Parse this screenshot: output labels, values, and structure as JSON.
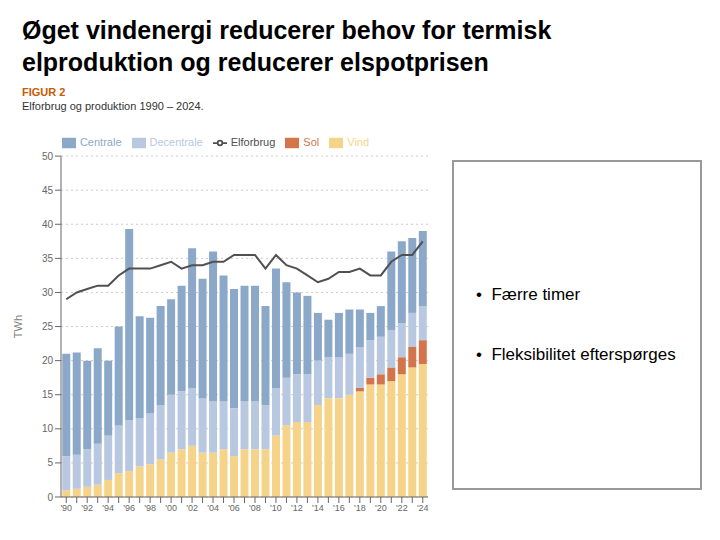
{
  "chart_data": {
    "type": "bar",
    "title": [
      "Øget vindenergi reducerer behov for termisk",
      "elproduktion og reducerer elspotprisen"
    ],
    "subtitle": "Elforbrug og produktion 1990 – 2024.",
    "annotations": [
      {
        "text": "FIGUR 2",
        "color": "#C85A00"
      },
      {
        "text": "•  Færre timer"
      },
      {
        "text": "•  Fleksibilitet efterspørges"
      }
    ],
    "ylabel": "TWh",
    "categories": [
      "'90",
      null,
      "'92",
      null,
      "'94",
      null,
      "'96",
      null,
      "'98",
      null,
      "'00",
      null,
      "'02",
      null,
      "'04",
      null,
      "'06",
      null,
      "'08",
      null,
      "'10",
      null,
      "'12",
      null,
      "'14",
      null,
      "'16",
      null,
      "'18",
      null,
      "'20",
      null,
      "'22",
      null,
      "'24"
    ],
    "series": [
      {
        "name": "Vind",
        "color": "#F5D48A",
        "values": [
          1.0,
          1.2,
          1.5,
          1.8,
          2.5,
          3.5,
          3.8,
          4.5,
          4.8,
          5.5,
          6.5,
          7.0,
          7.5,
          6.5,
          6.5,
          7.0,
          6.0,
          7.0,
          7.0,
          7.0,
          9.0,
          10.5,
          11.0,
          11.0,
          13.5,
          14.5,
          14.5,
          15.0,
          15.5,
          16.5,
          16.5,
          17.0,
          18.0,
          19.0,
          19.5
        ]
      },
      {
        "name": "Sol",
        "color": "#D4744A",
        "values": [
          0.0,
          0.0,
          0.0,
          0.0,
          0.0,
          0.0,
          0.0,
          0.0,
          0.0,
          0.0,
          0.0,
          0.0,
          0.0,
          0.0,
          0.0,
          0.0,
          0.0,
          0.0,
          0.0,
          0.0,
          0.0,
          0.0,
          0.0,
          0.0,
          0.0,
          0.0,
          0.0,
          0.0,
          0.5,
          1.0,
          1.5,
          2.0,
          2.5,
          3.0,
          3.5
        ]
      },
      {
        "name": "Decentrale",
        "color": "#B8C8E0",
        "values": [
          5.0,
          5.0,
          5.5,
          6.0,
          6.5,
          7.0,
          7.5,
          7.0,
          7.5,
          8.0,
          8.5,
          8.5,
          8.5,
          8.0,
          7.5,
          7.0,
          7.0,
          7.0,
          7.0,
          6.5,
          7.0,
          7.0,
          7.0,
          7.0,
          6.5,
          6.0,
          6.0,
          6.0,
          6.0,
          5.5,
          5.5,
          5.5,
          5.0,
          5.0,
          5.0
        ]
      },
      {
        "name": "Centrale",
        "color": "#8CA8C8",
        "values": [
          15.0,
          15.0,
          13.0,
          14.0,
          11.0,
          14.5,
          28.0,
          15.0,
          14.0,
          14.5,
          14.0,
          15.5,
          20.5,
          17.5,
          22.0,
          18.5,
          17.5,
          17.0,
          17.0,
          14.5,
          17.5,
          14.0,
          12.0,
          11.5,
          7.0,
          5.5,
          6.5,
          6.5,
          5.5,
          4.0,
          4.5,
          11.5,
          12.0,
          11.0,
          11.0
        ]
      },
      {
        "name": "Elforbrug",
        "type": "line",
        "color": "#505050",
        "values": [
          29.0,
          30.0,
          30.5,
          31.0,
          31.0,
          32.5,
          33.5,
          33.5,
          33.5,
          34.0,
          34.5,
          33.5,
          34.0,
          34.0,
          34.5,
          34.5,
          35.5,
          35.5,
          35.5,
          33.5,
          35.5,
          34.0,
          33.5,
          32.5,
          31.5,
          32.0,
          33.0,
          33.0,
          33.5,
          32.5,
          32.5,
          34.5,
          35.5,
          35.5,
          37.5
        ]
      }
    ],
    "ylim": [
      0,
      50
    ],
    "yticks": [
      0,
      5,
      10,
      15,
      20,
      25,
      30,
      35,
      40,
      45,
      50
    ],
    "grid": true,
    "stacked": true,
    "legend": "top"
  }
}
